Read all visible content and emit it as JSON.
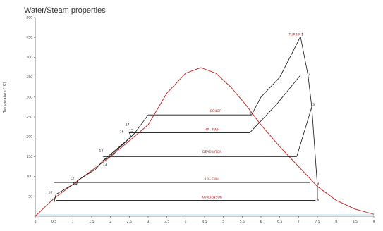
{
  "title": "Water/Steam properties",
  "chart_data": {
    "type": "line",
    "title": "Water/Steam properties",
    "xlabel": "",
    "ylabel": "Temperature [°C]",
    "xlim": [
      0,
      9
    ],
    "ylim": [
      0,
      500
    ],
    "x_ticks": [
      "0",
      "0.5",
      "1",
      "1.5",
      "2",
      "2.5",
      "3",
      "3.5",
      "4",
      "4.5",
      "5",
      "5.5",
      "6",
      "6.5",
      "7",
      "7.5",
      "8",
      "8.5",
      "9"
    ],
    "y_ticks": [
      "50",
      "100",
      "150",
      "200",
      "250",
      "300",
      "350",
      "400",
      "450",
      "500"
    ],
    "colors": {
      "saturation_dome": "#c0302a",
      "cycle": "#111111",
      "axis": "#333333",
      "baseline": "#6fc5d8",
      "process_label": "#a03030"
    },
    "series": [
      {
        "kind": "saturation_dome",
        "points": [
          [
            0.0,
            0.0
          ],
          [
            0.5,
            45.0
          ],
          [
            1.0,
            80.0
          ],
          [
            1.5,
            115.0
          ],
          [
            2.0,
            150.0
          ],
          [
            2.5,
            190.0
          ],
          [
            3.0,
            230.0
          ],
          [
            3.5,
            310.0
          ],
          [
            4.0,
            360.0
          ],
          [
            4.4,
            374.0
          ],
          [
            4.8,
            360.0
          ],
          [
            5.2,
            325.0
          ],
          [
            5.6,
            280.0
          ],
          [
            6.0,
            230.0
          ],
          [
            6.5,
            175.0
          ],
          [
            7.0,
            125.0
          ],
          [
            7.5,
            75.0
          ],
          [
            8.0,
            40.0
          ],
          [
            8.5,
            18.0
          ],
          [
            9.0,
            5.0
          ]
        ]
      },
      {
        "kind": "cycle",
        "segments": [
          [
            [
              0.5,
              35
            ],
            [
              0.55,
              55
            ],
            [
              1.0,
              80
            ]
          ],
          [
            [
              1.0,
              80
            ],
            [
              1.1,
              80
            ],
            [
              1.12,
              90
            ],
            [
              1.6,
              118
            ]
          ],
          [
            [
              1.6,
              118
            ],
            [
              1.8,
              140
            ],
            [
              2.55,
              200
            ]
          ],
          [
            [
              1.8,
              140
            ],
            [
              1.95,
              148
            ],
            [
              2.55,
              200
            ]
          ],
          [
            [
              2.55,
              200
            ],
            [
              2.65,
              210
            ],
            [
              3.0,
              255
            ]
          ],
          [
            [
              3.0,
              255
            ],
            [
              5.75,
              255
            ]
          ],
          [
            [
              2.55,
              200
            ],
            [
              2.5,
              210
            ],
            [
              5.7,
              210
            ]
          ],
          [
            [
              1.8,
              150
            ],
            [
              6.95,
              150
            ]
          ],
          [
            [
              0.5,
              85
            ],
            [
              7.3,
              85
            ]
          ],
          [
            [
              0.55,
              40
            ],
            [
              7.45,
              40
            ]
          ],
          [
            [
              5.75,
              255
            ],
            [
              6.0,
              300
            ],
            [
              6.5,
              350
            ],
            [
              7.05,
              452
            ]
          ],
          [
            [
              7.05,
              452
            ],
            [
              7.25,
              355
            ]
          ],
          [
            [
              7.25,
              355
            ],
            [
              7.35,
              275
            ]
          ],
          [
            [
              7.35,
              275
            ],
            [
              7.5,
              75
            ]
          ],
          [
            [
              7.5,
              75
            ],
            [
              7.5,
              40
            ]
          ],
          [
            [
              5.7,
              210
            ],
            [
              6.4,
              280
            ],
            [
              7.05,
              355
            ]
          ],
          [
            [
              6.95,
              150
            ],
            [
              7.35,
              275
            ]
          ]
        ]
      }
    ],
    "process_labels": [
      {
        "text": "TURBIN",
        "x": 6.9,
        "y": 455
      },
      {
        "text": "BOILER",
        "x": 4.8,
        "y": 262
      },
      {
        "text": "HP - FWH",
        "x": 4.7,
        "y": 215
      },
      {
        "text": "DEAERATOR",
        "x": 4.7,
        "y": 160
      },
      {
        "text": "LP - FWH",
        "x": 4.7,
        "y": 90
      },
      {
        "text": "KONDENSOR",
        "x": 4.7,
        "y": 45
      }
    ],
    "point_labels": [
      {
        "text": "1",
        "x": 7.1,
        "y": 455
      },
      {
        "text": "2",
        "x": 7.28,
        "y": 355
      },
      {
        "text": "3",
        "x": 7.4,
        "y": 278
      },
      {
        "text": "4",
        "x": 7.52,
        "y": 78
      },
      {
        "text": "5",
        "x": 7.52,
        "y": 38
      },
      {
        "text": "6",
        "x": 5.72,
        "y": 255
      },
      {
        "text": "10",
        "x": 0.4,
        "y": 58
      },
      {
        "text": "11",
        "x": 1.05,
        "y": 78
      },
      {
        "text": "12",
        "x": 0.98,
        "y": 92
      },
      {
        "text": "13",
        "x": 1.85,
        "y": 128
      },
      {
        "text": "14",
        "x": 1.75,
        "y": 162
      },
      {
        "text": "15",
        "x": 2.55,
        "y": 214
      },
      {
        "text": "16",
        "x": 2.3,
        "y": 210
      },
      {
        "text": "17",
        "x": 2.45,
        "y": 228
      }
    ]
  }
}
